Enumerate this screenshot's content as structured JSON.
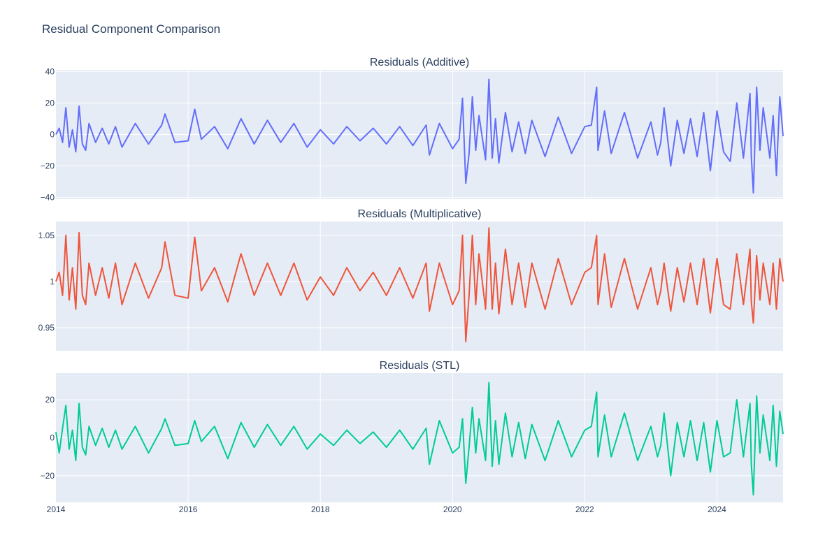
{
  "chart_data": {
    "type": "line",
    "title": "Residual Component Comparison",
    "x_range": [
      2014,
      2025
    ],
    "x_ticks": [
      {
        "value": 2014,
        "label": "2014"
      },
      {
        "value": 2016,
        "label": "2016"
      },
      {
        "value": 2018,
        "label": "2018"
      },
      {
        "value": 2020,
        "label": "2020"
      },
      {
        "value": 2022,
        "label": "2022"
      },
      {
        "value": 2024,
        "label": "2024"
      }
    ],
    "grid": true,
    "legend": "none",
    "subplots": [
      {
        "title": "Residuals (Additive)",
        "color": "#636efa",
        "ylim": [
          -41,
          41
        ],
        "y_ticks": [
          {
            "value": 40,
            "label": "40"
          },
          {
            "value": 20,
            "label": "20"
          },
          {
            "value": 0,
            "label": "0"
          },
          {
            "value": -20,
            "label": "−20"
          },
          {
            "value": -40,
            "label": "−40"
          }
        ],
        "x": [
          2014.0,
          2014.05,
          2014.1,
          2014.15,
          2014.2,
          2014.25,
          2014.3,
          2014.35,
          2014.4,
          2014.45,
          2014.5,
          2014.6,
          2014.7,
          2014.8,
          2014.9,
          2015.0,
          2015.2,
          2015.4,
          2015.6,
          2015.65,
          2015.8,
          2016.0,
          2016.1,
          2016.2,
          2016.4,
          2016.6,
          2016.8,
          2017.0,
          2017.2,
          2017.4,
          2017.6,
          2017.8,
          2018.0,
          2018.2,
          2018.4,
          2018.6,
          2018.8,
          2019.0,
          2019.2,
          2019.4,
          2019.6,
          2019.65,
          2019.8,
          2020.0,
          2020.1,
          2020.15,
          2020.2,
          2020.25,
          2020.3,
          2020.35,
          2020.4,
          2020.5,
          2020.55,
          2020.6,
          2020.65,
          2020.7,
          2020.8,
          2020.9,
          2021.0,
          2021.1,
          2021.2,
          2021.4,
          2021.6,
          2021.8,
          2022.0,
          2022.1,
          2022.18,
          2022.2,
          2022.3,
          2022.4,
          2022.6,
          2022.8,
          2023.0,
          2023.1,
          2023.15,
          2023.2,
          2023.3,
          2023.4,
          2023.5,
          2023.6,
          2023.7,
          2023.8,
          2023.9,
          2024.0,
          2024.1,
          2024.2,
          2024.3,
          2024.4,
          2024.5,
          2024.52,
          2024.55,
          2024.6,
          2024.65,
          2024.7,
          2024.8,
          2024.85,
          2024.9,
          2024.95,
          2025.0
        ],
        "values": [
          0,
          4,
          -5,
          17,
          -8,
          3,
          -11,
          18,
          -6,
          -10,
          7,
          -5,
          4,
          -6,
          5,
          -8,
          7,
          -6,
          6,
          13,
          -5,
          -4,
          16,
          -3,
          5,
          -9,
          10,
          -6,
          9,
          -5,
          7,
          -8,
          3,
          -6,
          5,
          -4,
          4,
          -6,
          5,
          -7,
          6,
          -13,
          7,
          -9,
          -3,
          23,
          -31,
          -12,
          24,
          -10,
          12,
          -16,
          35,
          -15,
          10,
          -18,
          14,
          -11,
          8,
          -12,
          9,
          -14,
          11,
          -12,
          5,
          6,
          30,
          -10,
          15,
          -12,
          14,
          -15,
          8,
          -13,
          -5,
          17,
          -20,
          9,
          -12,
          10,
          -14,
          14,
          -23,
          15,
          -11,
          -17,
          20,
          -15,
          26,
          -14,
          -37,
          30,
          -10,
          17,
          -15,
          12,
          -26,
          24,
          -1
        ]
      },
      {
        "title": "Residuals (Multiplicative)",
        "color": "#ef553b",
        "ylim": [
          0.925,
          1.065
        ],
        "y_ticks": [
          {
            "value": 1.05,
            "label": "1.05"
          },
          {
            "value": 1.0,
            "label": "1"
          },
          {
            "value": 0.95,
            "label": "0.95"
          }
        ],
        "x": [
          2014.0,
          2014.05,
          2014.1,
          2014.15,
          2014.2,
          2014.25,
          2014.3,
          2014.35,
          2014.4,
          2014.45,
          2014.5,
          2014.6,
          2014.7,
          2014.8,
          2014.9,
          2015.0,
          2015.2,
          2015.4,
          2015.6,
          2015.65,
          2015.8,
          2016.0,
          2016.1,
          2016.2,
          2016.4,
          2016.6,
          2016.8,
          2017.0,
          2017.2,
          2017.4,
          2017.6,
          2017.8,
          2018.0,
          2018.2,
          2018.4,
          2018.6,
          2018.8,
          2019.0,
          2019.2,
          2019.4,
          2019.6,
          2019.65,
          2019.8,
          2020.0,
          2020.1,
          2020.15,
          2020.2,
          2020.25,
          2020.3,
          2020.35,
          2020.4,
          2020.5,
          2020.55,
          2020.6,
          2020.65,
          2020.7,
          2020.8,
          2020.9,
          2021.0,
          2021.1,
          2021.2,
          2021.4,
          2021.6,
          2021.8,
          2022.0,
          2022.1,
          2022.18,
          2022.2,
          2022.3,
          2022.4,
          2022.6,
          2022.8,
          2023.0,
          2023.1,
          2023.15,
          2023.2,
          2023.3,
          2023.4,
          2023.5,
          2023.6,
          2023.7,
          2023.8,
          2023.9,
          2024.0,
          2024.1,
          2024.2,
          2024.3,
          2024.4,
          2024.5,
          2024.52,
          2024.55,
          2024.6,
          2024.65,
          2024.7,
          2024.8,
          2024.85,
          2024.9,
          2024.95,
          2025.0
        ],
        "values": [
          1.0,
          1.01,
          0.985,
          1.05,
          0.98,
          1.015,
          0.97,
          1.053,
          0.985,
          0.975,
          1.02,
          0.985,
          1.015,
          0.982,
          1.02,
          0.975,
          1.02,
          0.982,
          1.015,
          1.043,
          0.985,
          0.982,
          1.048,
          0.99,
          1.015,
          0.978,
          1.03,
          0.985,
          1.02,
          0.985,
          1.02,
          0.98,
          1.005,
          0.985,
          1.015,
          0.99,
          1.01,
          0.985,
          1.015,
          0.982,
          1.02,
          0.968,
          1.02,
          0.975,
          0.99,
          1.05,
          0.935,
          0.985,
          1.05,
          0.975,
          1.03,
          0.97,
          1.058,
          0.97,
          1.02,
          0.965,
          1.035,
          0.975,
          1.02,
          0.972,
          1.02,
          0.97,
          1.025,
          0.975,
          1.01,
          1.015,
          1.05,
          0.975,
          1.03,
          0.972,
          1.025,
          0.97,
          1.015,
          0.975,
          0.99,
          1.02,
          0.968,
          1.015,
          0.978,
          1.02,
          0.975,
          1.025,
          0.966,
          1.025,
          0.975,
          0.97,
          1.03,
          0.975,
          1.035,
          0.978,
          0.955,
          1.028,
          0.98,
          1.02,
          0.975,
          1.02,
          0.97,
          1.025,
          1.0
        ]
      },
      {
        "title": "Residuals (STL)",
        "color": "#00cc96",
        "ylim": [
          -34,
          34
        ],
        "y_ticks": [
          {
            "value": 20,
            "label": "20"
          },
          {
            "value": 0,
            "label": "0"
          },
          {
            "value": -20,
            "label": "−20"
          }
        ],
        "x": [
          2014.0,
          2014.05,
          2014.1,
          2014.15,
          2014.2,
          2014.25,
          2014.3,
          2014.35,
          2014.4,
          2014.45,
          2014.5,
          2014.6,
          2014.7,
          2014.8,
          2014.9,
          2015.0,
          2015.2,
          2015.4,
          2015.6,
          2015.65,
          2015.8,
          2016.0,
          2016.1,
          2016.2,
          2016.4,
          2016.6,
          2016.8,
          2017.0,
          2017.2,
          2017.4,
          2017.6,
          2017.8,
          2018.0,
          2018.2,
          2018.4,
          2018.6,
          2018.8,
          2019.0,
          2019.2,
          2019.4,
          2019.6,
          2019.65,
          2019.8,
          2020.0,
          2020.1,
          2020.15,
          2020.2,
          2020.25,
          2020.3,
          2020.35,
          2020.4,
          2020.5,
          2020.55,
          2020.6,
          2020.65,
          2020.7,
          2020.8,
          2020.9,
          2021.0,
          2021.1,
          2021.2,
          2021.4,
          2021.6,
          2021.8,
          2022.0,
          2022.1,
          2022.18,
          2022.2,
          2022.3,
          2022.4,
          2022.6,
          2022.8,
          2023.0,
          2023.1,
          2023.15,
          2023.2,
          2023.3,
          2023.4,
          2023.5,
          2023.6,
          2023.7,
          2023.8,
          2023.9,
          2024.0,
          2024.1,
          2024.2,
          2024.3,
          2024.4,
          2024.5,
          2024.52,
          2024.55,
          2024.6,
          2024.65,
          2024.7,
          2024.8,
          2024.85,
          2024.9,
          2024.95,
          2025.0
        ],
        "values": [
          3,
          -8,
          5,
          17,
          -6,
          4,
          -12,
          18,
          -5,
          -9,
          6,
          -4,
          5,
          -5,
          4,
          -6,
          6,
          -8,
          5,
          10,
          -4,
          -3,
          9,
          -2,
          6,
          -11,
          8,
          -5,
          7,
          -4,
          6,
          -6,
          2,
          -4,
          4,
          -3,
          3,
          -5,
          4,
          -6,
          5,
          -14,
          9,
          -8,
          -5,
          10,
          -24,
          -5,
          16,
          -8,
          10,
          -12,
          29,
          -15,
          9,
          -14,
          13,
          -10,
          8,
          -11,
          7,
          -12,
          9,
          -10,
          4,
          6,
          24,
          -10,
          12,
          -10,
          13,
          -12,
          6,
          -10,
          -4,
          13,
          -20,
          8,
          -10,
          9,
          -12,
          8,
          -18,
          9,
          -10,
          -8,
          20,
          -10,
          18,
          -14,
          -30,
          22,
          -8,
          12,
          -12,
          17,
          -15,
          14,
          2
        ]
      }
    ]
  }
}
